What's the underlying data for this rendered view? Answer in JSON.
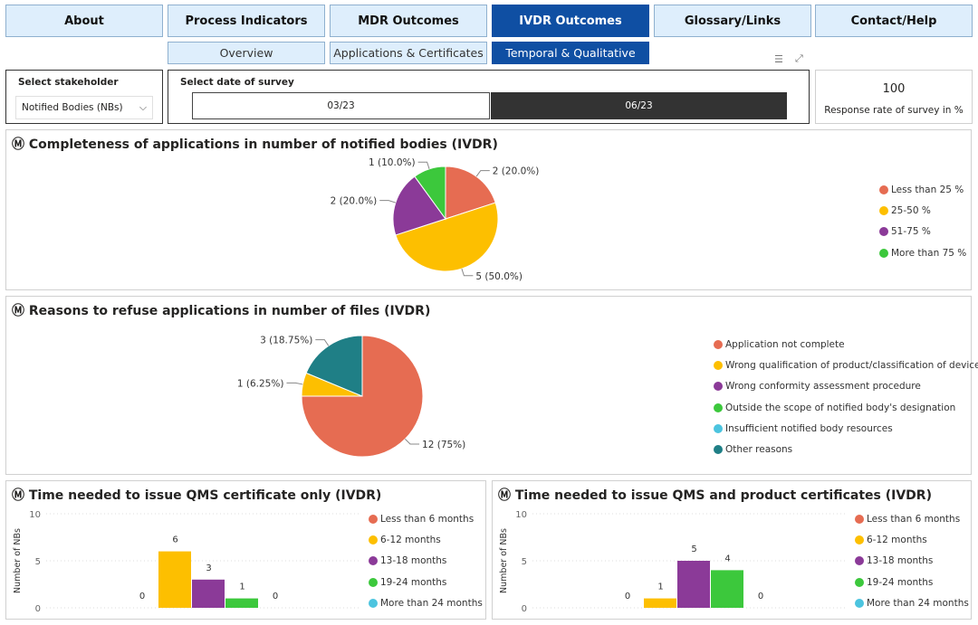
{
  "nav": [
    "About",
    "Process Indicators",
    "MDR Outcomes",
    "IVDR Outcomes",
    "Glossary/Links",
    "Contact/Help"
  ],
  "subnav": [
    "Overview",
    "Applications & Certificates",
    "Temporal & Qualitative"
  ],
  "stakeholder": {
    "label": "Select stakeholder",
    "value": "Notified Bodies (NBs)"
  },
  "survey": {
    "label": "Select date of survey",
    "options": [
      "03/23",
      "06/23"
    ],
    "selected": "06/23"
  },
  "response": {
    "value": "100",
    "label": "Response rate of survey in %"
  },
  "colors": {
    "red": "#E66C52",
    "yellow": "#FDBF00",
    "purple": "#8B3A98",
    "green": "#3CC83C",
    "blue": "#4CC4DF",
    "teal": "#1F7F86"
  },
  "chart_data": [
    {
      "type": "pie",
      "title": "Ⓜ Completeness of applications in number of notified bodies (IVDR)",
      "labels": [
        "Less than 25 %",
        "25-50 %",
        "51-75 %",
        "More than 75 %"
      ],
      "values": [
        2,
        5,
        2,
        1
      ],
      "data_labels": [
        "2 (20.0%)",
        "5 (50.0%)",
        "2 (20.0%)",
        "1 (10.0%)"
      ],
      "colors": [
        "#E66C52",
        "#FDBF00",
        "#8B3A98",
        "#3CC83C"
      ],
      "legend": "right"
    },
    {
      "type": "pie",
      "title": "Ⓜ Reasons to refuse applications in number of files (IVDR)",
      "labels": [
        "Application not complete",
        "Wrong qualification of product/classification of device",
        "Wrong conformity assessment procedure",
        "Outside the scope of notified body's designation",
        "Insufficient notified body resources",
        "Other reasons"
      ],
      "values": [
        12,
        1,
        0,
        0,
        0,
        3
      ],
      "data_labels": [
        "12 (75%)",
        "1 (6.25%)",
        "",
        "",
        "",
        "3 (18.75%)"
      ],
      "colors": [
        "#E66C52",
        "#FDBF00",
        "#8B3A98",
        "#3CC83C",
        "#4CC4DF",
        "#1F7F86"
      ],
      "legend": "right"
    },
    {
      "type": "bar",
      "title": "Ⓜ Time needed to issue QMS certificate only (IVDR)",
      "ylabel": "Number of NBs",
      "ylim": [
        0,
        10
      ],
      "yticks": [
        "0",
        "5",
        "10"
      ],
      "categories": [
        "Less than 6 months",
        "6-12 months",
        "13-18 months",
        "19-24 months",
        "More than 24 months"
      ],
      "values": [
        0,
        6,
        3,
        1,
        0
      ],
      "colors": [
        "#E66C52",
        "#FDBF00",
        "#8B3A98",
        "#3CC83C",
        "#4CC4DF"
      ],
      "legend": "right"
    },
    {
      "type": "bar",
      "title": "Ⓜ Time needed to issue QMS and product certificates (IVDR)",
      "ylabel": "Number of NBs",
      "ylim": [
        0,
        10
      ],
      "yticks": [
        "0",
        "5",
        "10"
      ],
      "categories": [
        "Less than 6 months",
        "6-12 months",
        "13-18 months",
        "19-24 months",
        "More than 24 months"
      ],
      "values": [
        0,
        1,
        5,
        4,
        0
      ],
      "colors": [
        "#E66C52",
        "#FDBF00",
        "#8B3A98",
        "#3CC83C",
        "#4CC4DF"
      ],
      "legend": "right"
    }
  ]
}
